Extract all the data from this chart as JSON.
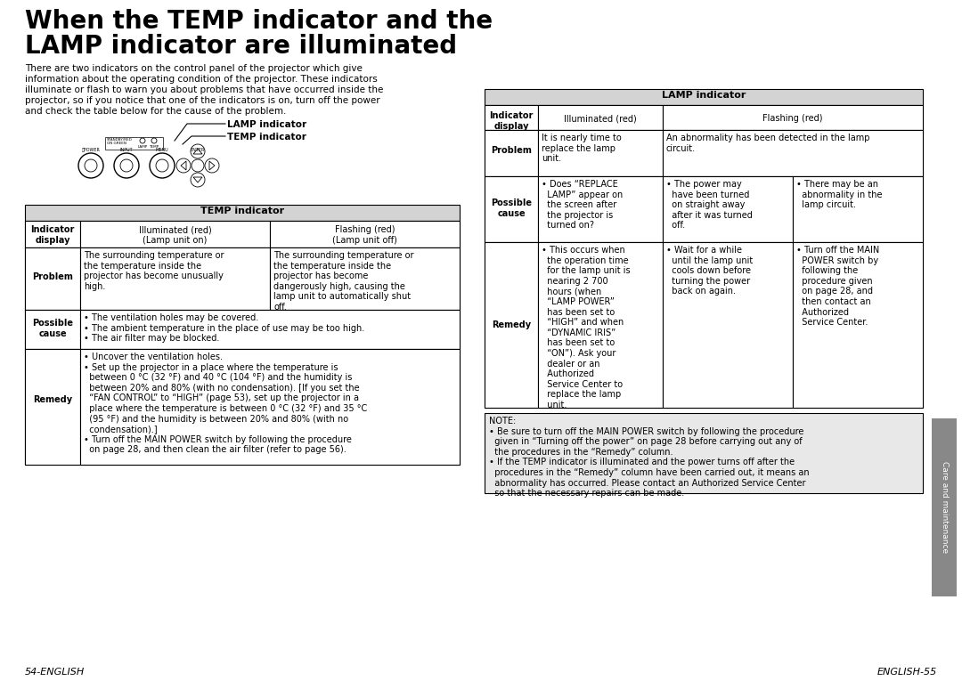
{
  "bg_color": "#ffffff",
  "title_line1": "When the TEMP indicator and the",
  "title_line2": "LAMP indicator are illuminated",
  "intro_text": "There are two indicators on the control panel of the projector which give\ninformation about the operating condition of the projector. These indicators\nilluminate or flash to warn you about problems that have occurred inside the\nprojector, so if you notice that one of the indicators is on, turn off the power\nand check the table below for the cause of the problem.",
  "temp_table_header": "TEMP indicator",
  "lamp_table_header": "LAMP indicator",
  "header_bg": "#d3d3d3",
  "note_bg": "#e8e8e8",
  "tab_bg": "#888888",
  "footer_left": "54-ENGLISH",
  "footer_right": "ENGLISH-55"
}
